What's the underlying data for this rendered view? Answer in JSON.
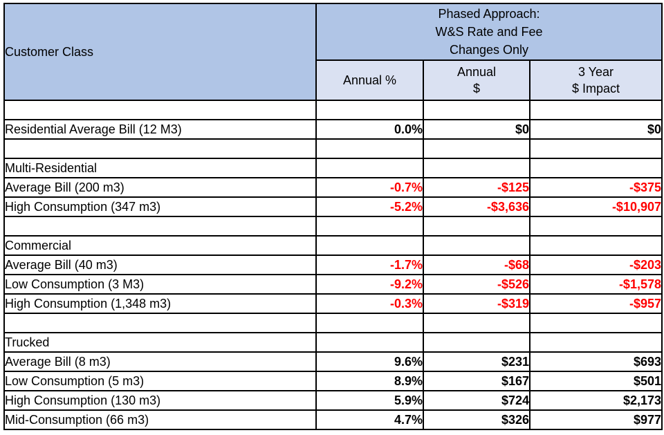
{
  "table": {
    "customer_class_header": "Customer Class",
    "group_header": "Phased Approach:\nW&S Rate and Fee\nChanges Only",
    "columns": [
      "Annual %",
      "Annual\n$",
      "3 Year\n$ Impact"
    ],
    "colors": {
      "header_bg": "#b0c5e6",
      "subheader_bg": "#dae1f2",
      "negative_value": "#ff0000",
      "positive_value": "#000000",
      "border": "#000000"
    },
    "rows": [
      {
        "type": "blank"
      },
      {
        "type": "data",
        "label": "Residential Average Bill (12 M3)",
        "indent": false,
        "values": [
          "0.0%",
          "$0",
          "$0"
        ],
        "negative": false
      },
      {
        "type": "blank"
      },
      {
        "type": "section",
        "label": "Multi-Residential"
      },
      {
        "type": "data",
        "label": "Average Bill (200 m3)",
        "indent": true,
        "values": [
          "-0.7%",
          "-$125",
          "-$375"
        ],
        "negative": true
      },
      {
        "type": "data",
        "label": "High Consumption (347 m3)",
        "indent": true,
        "values": [
          "-5.2%",
          "-$3,636",
          "-$10,907"
        ],
        "negative": true
      },
      {
        "type": "blank"
      },
      {
        "type": "section",
        "label": "Commercial"
      },
      {
        "type": "data",
        "label": "Average Bill (40 m3)",
        "indent": true,
        "values": [
          "-1.7%",
          "-$68",
          "-$203"
        ],
        "negative": true
      },
      {
        "type": "data",
        "label": "Low Consumption (3 M3)",
        "indent": true,
        "values": [
          "-9.2%",
          "-$526",
          "-$1,578"
        ],
        "negative": true
      },
      {
        "type": "data",
        "label": "High Consumption (1,348 m3)",
        "indent": true,
        "values": [
          "-0.3%",
          "-$319",
          "-$957"
        ],
        "negative": true
      },
      {
        "type": "blank"
      },
      {
        "type": "section",
        "label": "Trucked"
      },
      {
        "type": "data",
        "label": "Average Bill (8 m3)",
        "indent": true,
        "values": [
          "9.6%",
          "$231",
          "$693"
        ],
        "negative": false
      },
      {
        "type": "data",
        "label": "Low Consumption (5 m3)",
        "indent": true,
        "values": [
          "8.9%",
          "$167",
          "$501"
        ],
        "negative": false
      },
      {
        "type": "data",
        "label": "High Consumption (130 m3)",
        "indent": true,
        "values": [
          "5.9%",
          "$724",
          "$2,173"
        ],
        "negative": false
      },
      {
        "type": "data",
        "label": "Mid-Consumption (66 m3)",
        "indent": true,
        "values": [
          "4.7%",
          "$326",
          "$977"
        ],
        "negative": false
      }
    ]
  }
}
